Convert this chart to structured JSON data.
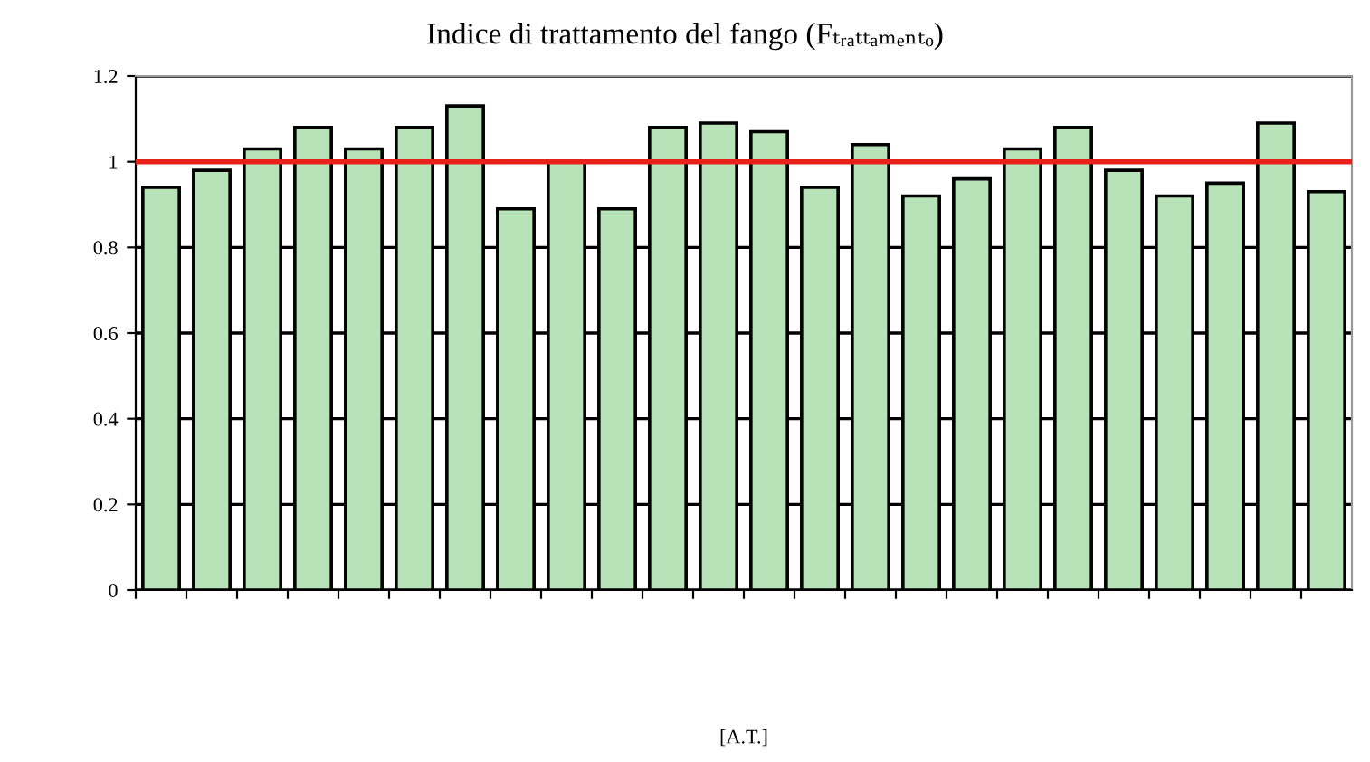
{
  "chart_data": {
    "type": "bar",
    "title": "Indice di trattamento del fango (Fₜᵣₐₜₜₐₘₑₙₜₒ)",
    "annotations": [
      "[A.T.]"
    ],
    "categories": [
      null,
      null,
      null,
      null,
      null,
      null,
      null,
      null,
      null,
      null,
      null,
      null,
      null,
      null,
      null,
      null,
      null,
      null,
      null,
      null,
      null,
      null,
      null,
      null
    ],
    "values": [
      0.94,
      0.98,
      1.03,
      1.08,
      1.03,
      1.08,
      1.13,
      0.89,
      1.0,
      0.89,
      1.08,
      1.09,
      1.07,
      0.94,
      1.04,
      0.92,
      0.96,
      1.03,
      1.08,
      0.98,
      0.92,
      0.95,
      1.09,
      0.93
    ],
    "color": "#b8e3b8",
    "ylim": [
      0,
      1.2
    ],
    "yticks": [
      0,
      0.2,
      0.4,
      0.6,
      0.8,
      1,
      1.2
    ],
    "grid": "y",
    "ref_lines": [
      {
        "axis": "y",
        "value": 1,
        "color": "#e8201a"
      }
    ]
  }
}
